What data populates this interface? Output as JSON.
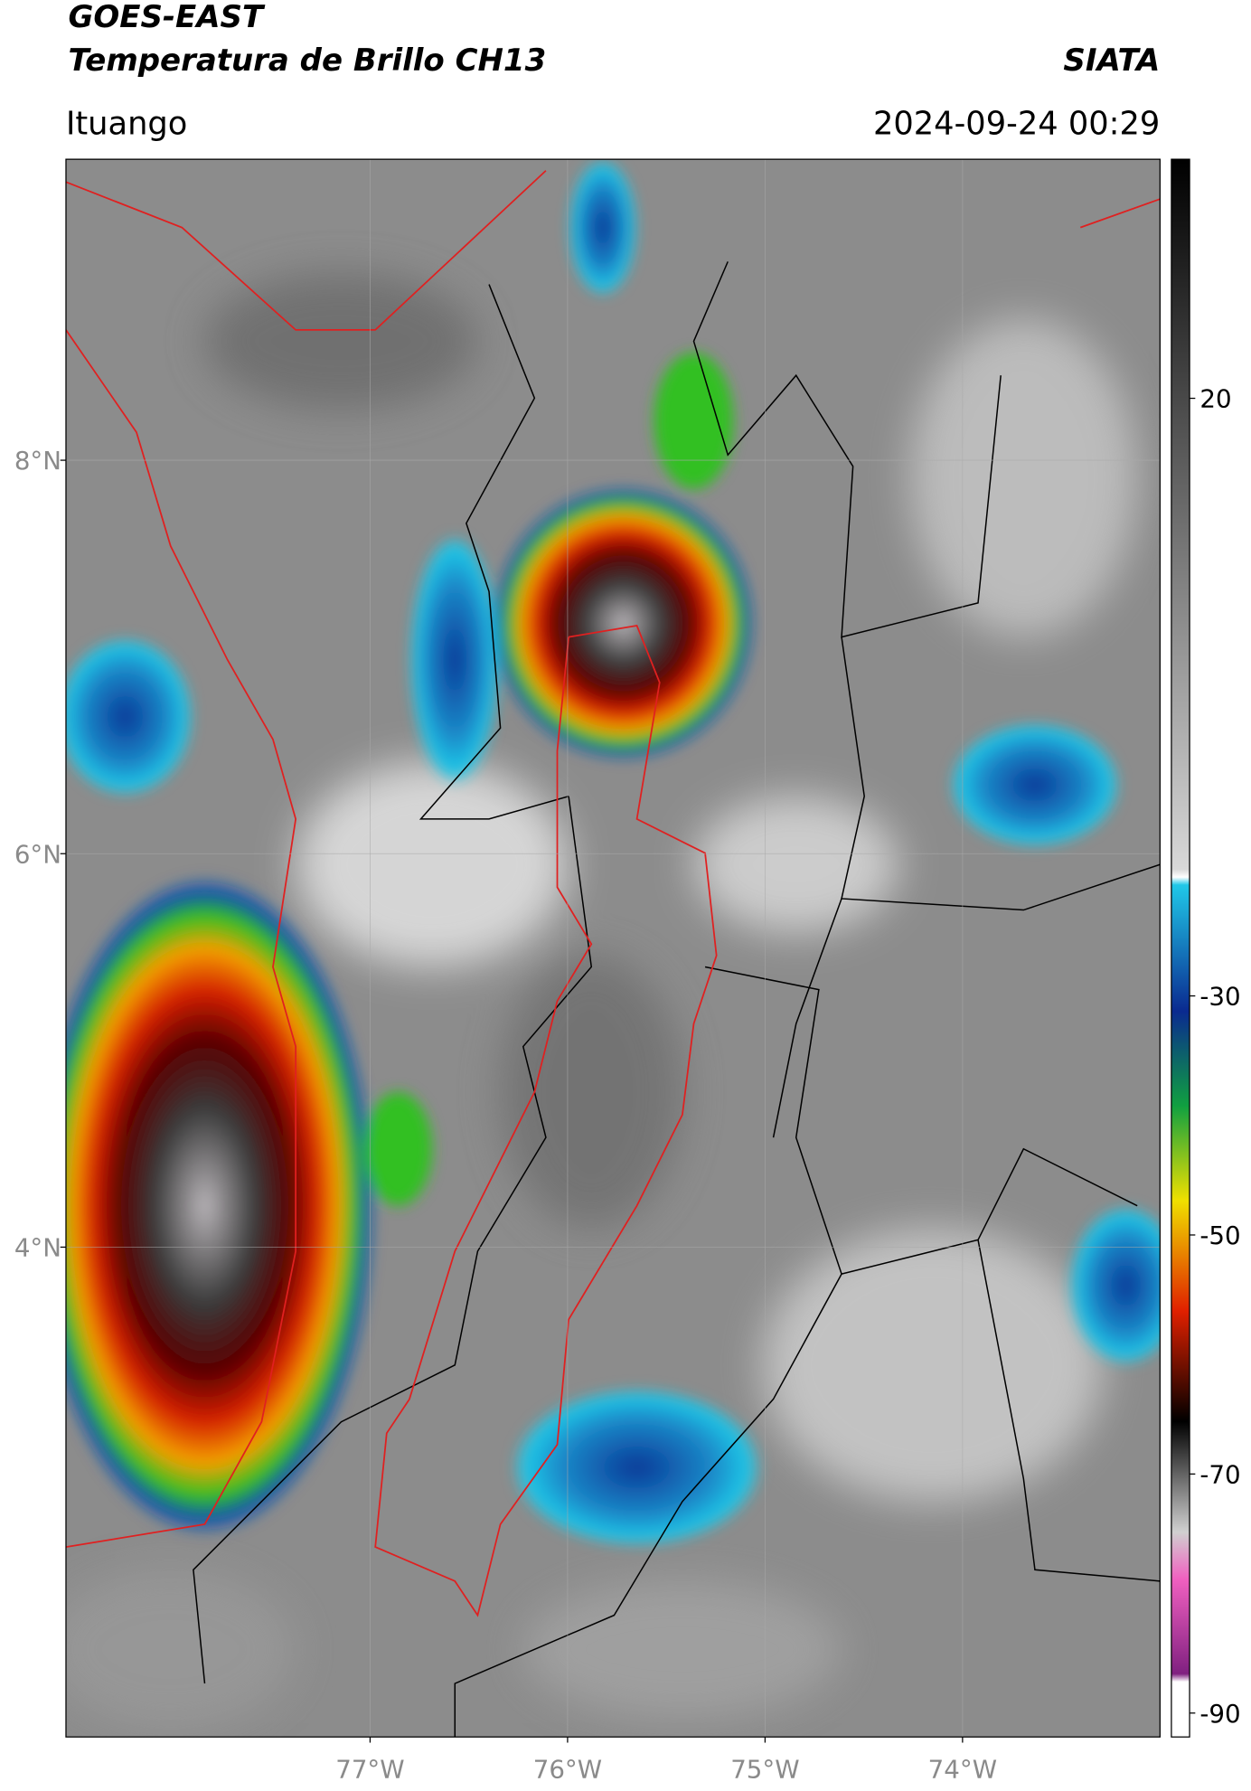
{
  "header": {
    "title_line1": "GOES-EAST",
    "title_line2": "Temperatura de Brillo CH13",
    "source": "SIATA",
    "location": "Ituango",
    "datetime": "2024-09-24 00:29"
  },
  "map": {
    "xlim": [
      -78.54,
      -73.0
    ],
    "ylim": [
      1.51,
      9.53
    ],
    "xticks": [
      {
        "value": -77,
        "label": "77°W"
      },
      {
        "value": -76,
        "label": "76°W"
      },
      {
        "value": -75,
        "label": "75°W"
      },
      {
        "value": -74,
        "label": "74°W"
      }
    ],
    "yticks": [
      {
        "value": 4,
        "label": "4°N"
      },
      {
        "value": 6,
        "label": "6°N"
      },
      {
        "value": 8,
        "label": "8°N"
      }
    ],
    "grid": true
  },
  "colorbar": {
    "lim": [
      -92,
      40
    ],
    "ticks": [
      20,
      -30,
      -50,
      -70,
      -90
    ]
  }
}
